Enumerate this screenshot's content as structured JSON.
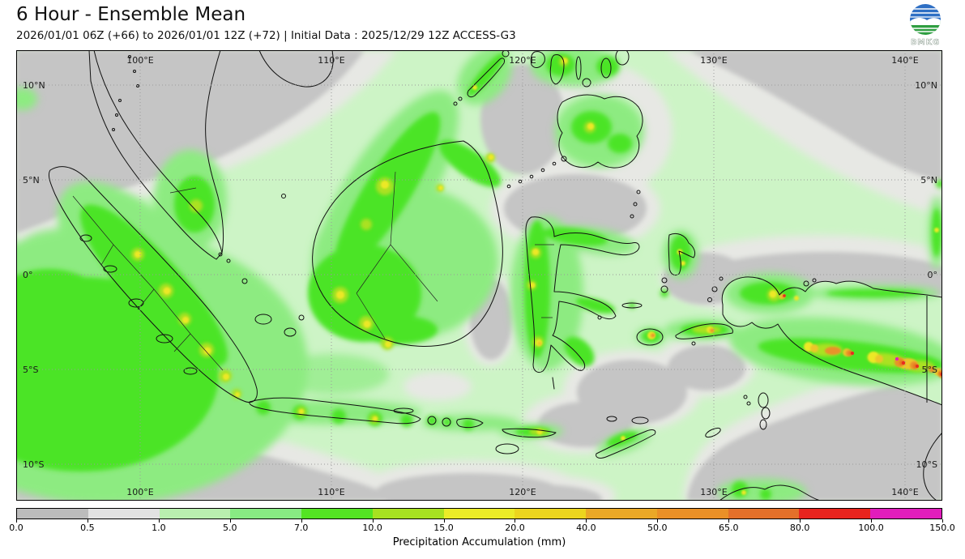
{
  "header": {
    "title": "6 Hour - Ensemble Mean",
    "subtitle": "2026/01/01 06Z (+66) to 2026/01/01 12Z (+72) | Initial Data : 2025/12/29 12Z ACCESS-G3",
    "logo_text": "BMKG"
  },
  "map": {
    "lon_labels": [
      "100°E",
      "110°E",
      "120°E",
      "130°E",
      "140°E"
    ],
    "lat_labels": [
      "10°N",
      "5°N",
      "0°",
      "5°S",
      "10°S"
    ]
  },
  "colorbar": {
    "label": "Precipitation Accumulation (mm)",
    "ticks": [
      "0.0",
      "0.5",
      "1.0",
      "5.0",
      "7.0",
      "10.0",
      "15.0",
      "20.0",
      "40.0",
      "50.0",
      "65.0",
      "80.0",
      "100.0",
      "150.0"
    ],
    "colors": [
      "#bcbcbc",
      "#e2e2e2",
      "#b9efaf",
      "#88ea83",
      "#54e423",
      "#a7e121",
      "#ebec28",
      "#ecd51e",
      "#eaa827",
      "#ea9027",
      "#e4702a",
      "#e8241e",
      "#e11dbc"
    ]
  }
}
